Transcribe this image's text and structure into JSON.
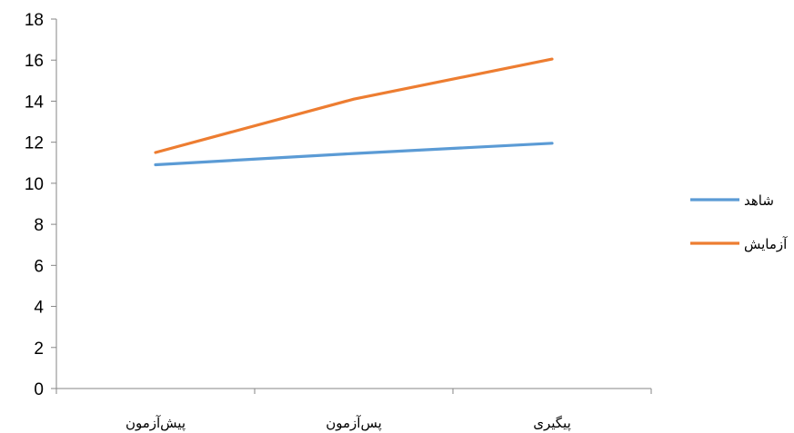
{
  "chart_data": {
    "type": "line",
    "categories": [
      "پیش‌آزمون",
      "پس‌آزمون",
      "پیگیری"
    ],
    "series": [
      {
        "name": "شاهد",
        "values": [
          10.9,
          11.45,
          11.95
        ],
        "color": "#5B9BD5"
      },
      {
        "name": "آزمایش",
        "values": [
          11.5,
          14.1,
          16.05
        ],
        "color": "#ED7D31"
      }
    ],
    "ylim": [
      0,
      18
    ],
    "yticks": [
      "0",
      "2",
      "4",
      "6",
      "8",
      "10",
      "12",
      "14",
      "16",
      "18"
    ],
    "grid": false,
    "legend_position": "right"
  }
}
